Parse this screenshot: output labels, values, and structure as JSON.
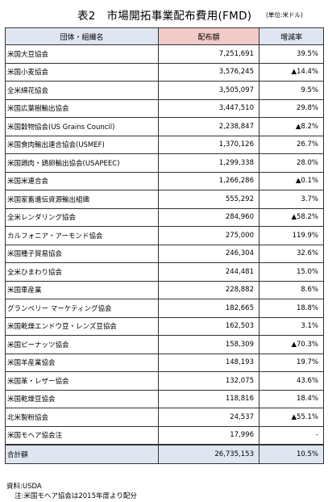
{
  "header": {
    "title": "表2　市場開拓事業配布費用(FMD)",
    "unit": "(単位:米ドル)"
  },
  "table": {
    "columns": [
      "団体・組織名",
      "配布額",
      "増減率"
    ],
    "rows": [
      {
        "name": "米国大豆協会",
        "amount": "7,251,691",
        "rate": "39.5%"
      },
      {
        "name": "米国小麦協会",
        "amount": "3,576,245",
        "rate": "▲14.4%"
      },
      {
        "name": "全米綿花協会",
        "amount": "3,505,097",
        "rate": "9.5%"
      },
      {
        "name": "米国広葉樹輸出協会",
        "amount": "3,447,510",
        "rate": "29.8%"
      },
      {
        "name": "米国穀物協会(US Grains Council)",
        "amount": "2,238,847",
        "rate": "▲8.2%"
      },
      {
        "name": "米国食肉輸出連合協会(USMEF)",
        "amount": "1,370,126",
        "rate": "26.7%"
      },
      {
        "name": "米国鶏肉・鶏卵輸出協会(USAPEEC)",
        "amount": "1,299,338",
        "rate": "28.0%"
      },
      {
        "name": "米国米連合会",
        "amount": "1,266,286",
        "rate": "▲0.1%"
      },
      {
        "name": "米国家畜遺伝資源輸出組織",
        "amount": "555,292",
        "rate": "3.7%"
      },
      {
        "name": "全米レンダリング協会",
        "amount": "284,960",
        "rate": "▲58.2%"
      },
      {
        "name": "カルフォニア・アーモンド協会",
        "amount": "275,000",
        "rate": "119.9%"
      },
      {
        "name": "米国種子貿易協会",
        "amount": "246,304",
        "rate": "32.6%"
      },
      {
        "name": "全米ひまわり協会",
        "amount": "244,481",
        "rate": "15.0%"
      },
      {
        "name": "米国車産業",
        "amount": "228,882",
        "rate": "8.6%"
      },
      {
        "name": "グランベリー マーケティング協会",
        "amount": "182,665",
        "rate": "18.8%"
      },
      {
        "name": "米国乾燥エンドウ豆・レンズ豆協会",
        "amount": "162,503",
        "rate": "3.1%"
      },
      {
        "name": "米国ピーナッツ協会",
        "amount": "158,309",
        "rate": "▲70.3%"
      },
      {
        "name": "米国羊産業協会",
        "amount": "148,193",
        "rate": "19.7%"
      },
      {
        "name": "米国革・レザー協会",
        "amount": "132,075",
        "rate": "43.6%"
      },
      {
        "name": "米国乾燥豆協会",
        "amount": "118,816",
        "rate": "18.4%"
      },
      {
        "name": "北米製粉協会",
        "amount": "24,537",
        "rate": "▲55.1%"
      },
      {
        "name": "米国モヘア協会注",
        "amount": "17,996",
        "rate": "-"
      }
    ],
    "total": {
      "name": "合計額",
      "amount": "26,735,153",
      "rate": "10.5%"
    }
  },
  "footer": {
    "source": "資料:USDA",
    "note": "注:米国モヘア協会は2015年度より配分"
  },
  "colors": {
    "header_blue": "#dfe6f1",
    "header_pink": "#f2cbc8",
    "border": "#333333"
  }
}
